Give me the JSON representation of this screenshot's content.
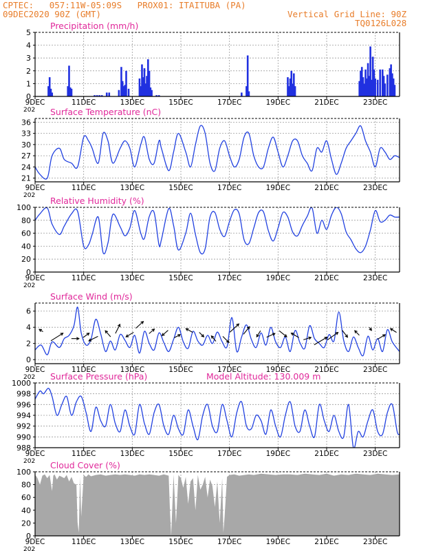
{
  "header": {
    "line1_left": "CPTEC:   057:11W-05:09S   PROX01: ITAITUBA (PA)",
    "line2_left": "09DEC2020 90Z (GMT)",
    "line2_right": "Vertical Grid Line: 90Z",
    "line3_right": "TQ0126L028",
    "color": "#e87d2a"
  },
  "style": {
    "title_color": "#e0289a",
    "line_color": "#2040e0",
    "bar_color": "#2030e0",
    "cloud_color": "#a8a8a8"
  },
  "x_axis": {
    "labels": [
      "9DEC",
      "11DEC",
      "13DEC",
      "15DEC",
      "17DEC",
      "19DEC",
      "21DEC",
      "23DEC"
    ],
    "label_day": [
      9,
      11,
      13,
      15,
      17,
      19,
      21,
      23
    ],
    "year_stub": "202",
    "x_start_day": 9,
    "x_end_day": 24
  },
  "chart_data": [
    {
      "id": "precip",
      "type": "bar",
      "title": "Precipitation (mm/h)",
      "ylim": [
        0,
        5
      ],
      "yticks": [
        "0",
        "1",
        "2",
        "3",
        "4",
        "5"
      ],
      "grid": true,
      "x_day": [
        9.55,
        9.6,
        9.65,
        9.7,
        10.35,
        10.4,
        10.45,
        10.5,
        11.45,
        11.55,
        11.65,
        11.75,
        11.95,
        12.05,
        12.45,
        12.55,
        12.6,
        12.65,
        12.7,
        12.75,
        12.85,
        13.3,
        13.35,
        13.4,
        13.45,
        13.5,
        13.55,
        13.6,
        13.65,
        13.7,
        13.75,
        13.8,
        14.0,
        14.1,
        17.5,
        17.7,
        17.75,
        17.8,
        19.4,
        19.45,
        19.5,
        19.55,
        19.6,
        19.65,
        19.7,
        22.35,
        22.4,
        22.45,
        22.5,
        22.55,
        22.6,
        22.65,
        22.7,
        22.75,
        22.8,
        22.85,
        22.9,
        22.95,
        23.0,
        23.1,
        23.2,
        23.3,
        23.35,
        23.4,
        23.5,
        23.6,
        23.65,
        23.7,
        23.75,
        23.8
      ],
      "values": [
        0.8,
        1.5,
        0.6,
        0.3,
        0.8,
        2.4,
        0.7,
        0.6,
        0.1,
        0.1,
        0.1,
        0.1,
        0.3,
        0.3,
        0.5,
        2.3,
        1.2,
        0.8,
        0.9,
        2.0,
        0.6,
        1.4,
        0.8,
        2.5,
        1.5,
        2.2,
        1.0,
        1.6,
        2.9,
        2.0,
        0.7,
        0.5,
        0.1,
        0.1,
        0.3,
        0.8,
        3.2,
        0.4,
        1.5,
        0.8,
        1.4,
        2.0,
        1.0,
        1.8,
        0.8,
        1.2,
        2.0,
        2.3,
        1.5,
        1.0,
        2.1,
        1.4,
        2.6,
        1.6,
        3.9,
        1.3,
        3.1,
        2.1,
        1.4,
        1.3,
        2.1,
        2.1,
        1.6,
        1.0,
        1.7,
        2.2,
        2.5,
        1.8,
        1.4,
        0.9
      ]
    },
    {
      "id": "temperature",
      "type": "line",
      "title": "Surface Temperature (nC)",
      "ylim": [
        20,
        37
      ],
      "yticks": [
        "21",
        "24",
        "27",
        "30",
        "33",
        "36"
      ],
      "ytick_values": [
        21,
        24,
        27,
        30,
        33,
        36
      ],
      "grid": true,
      "x_day": [
        9,
        9.2,
        9.5,
        9.7,
        10.0,
        10.2,
        10.5,
        10.75,
        11.0,
        11.2,
        11.35,
        11.6,
        11.8,
        12.0,
        12.2,
        12.5,
        12.7,
        12.9,
        13.1,
        13.35,
        13.5,
        13.7,
        13.9,
        14.1,
        14.2,
        14.5,
        14.7,
        14.9,
        15.2,
        15.4,
        15.6,
        15.8,
        16.0,
        16.2,
        16.4,
        16.6,
        16.8,
        17.0,
        17.2,
        17.4,
        17.6,
        17.8,
        18.0,
        18.2,
        18.4,
        18.6,
        18.8,
        19.0,
        19.2,
        19.4,
        19.6,
        19.8,
        20.0,
        20.2,
        20.4,
        20.6,
        20.8,
        21.0,
        21.2,
        21.4,
        21.6,
        21.8,
        22.0,
        22.2,
        22.4,
        22.6,
        22.8,
        23.0,
        23.2,
        23.4,
        23.6,
        23.8,
        24.0
      ],
      "values": [
        24,
        22,
        21,
        27,
        29,
        26,
        25,
        24,
        32,
        31,
        29,
        25,
        33,
        31,
        25,
        29,
        31,
        29,
        24,
        30,
        32,
        26,
        25,
        31,
        29,
        23,
        28,
        33,
        28,
        24,
        30,
        35,
        33,
        25,
        23,
        29,
        31,
        27,
        24,
        26,
        32,
        33,
        27,
        24,
        24,
        29,
        32,
        28,
        24,
        27,
        31,
        31,
        27,
        25,
        23,
        29,
        28,
        31,
        26,
        22,
        25,
        29,
        31,
        33,
        35,
        31,
        28,
        24,
        29,
        28,
        26,
        27,
        26.5
      ]
    },
    {
      "id": "humidity",
      "type": "line",
      "title": "Relative Humidity (%)",
      "ylim": [
        0,
        100
      ],
      "yticks": [
        "0",
        "20",
        "40",
        "60",
        "80",
        "100"
      ],
      "ytick_values": [
        0,
        20,
        40,
        60,
        80,
        100
      ],
      "grid": true,
      "x_day": [
        9,
        9.2,
        9.5,
        9.7,
        10.0,
        10.2,
        10.5,
        10.75,
        11.0,
        11.2,
        11.35,
        11.6,
        11.8,
        12.0,
        12.2,
        12.5,
        12.7,
        12.9,
        13.1,
        13.35,
        13.5,
        13.7,
        13.9,
        14.1,
        14.2,
        14.5,
        14.7,
        14.9,
        15.2,
        15.4,
        15.6,
        15.8,
        16.0,
        16.2,
        16.4,
        16.6,
        16.8,
        17.0,
        17.2,
        17.4,
        17.6,
        17.8,
        18.0,
        18.2,
        18.4,
        18.6,
        18.8,
        19.0,
        19.2,
        19.4,
        19.6,
        19.8,
        20.0,
        20.2,
        20.4,
        20.6,
        20.8,
        21.0,
        21.2,
        21.4,
        21.6,
        21.8,
        22.0,
        22.2,
        22.4,
        22.6,
        22.8,
        23.0,
        23.2,
        23.4,
        23.6,
        23.8,
        24.0
      ],
      "values": [
        80,
        90,
        99,
        74,
        58,
        71,
        90,
        94,
        40,
        42,
        58,
        85,
        30,
        45,
        89,
        70,
        56,
        68,
        95,
        60,
        52,
        86,
        92,
        42,
        50,
        98,
        72,
        34,
        60,
        91,
        58,
        30,
        36,
        85,
        92,
        66,
        55,
        78,
        96,
        90,
        50,
        44,
        68,
        92,
        93,
        64,
        48,
        68,
        92,
        85,
        62,
        56,
        72,
        86,
        99,
        60,
        80,
        66,
        88,
        100,
        90,
        62,
        50,
        36,
        30,
        40,
        65,
        95,
        78,
        80,
        88,
        85,
        85
      ]
    },
    {
      "id": "wind",
      "type": "line",
      "title": "Surface Wind (m/s)",
      "ylim": [
        -0.5,
        7
      ],
      "yticks": [
        "0",
        "2",
        "4",
        "6"
      ],
      "ytick_values": [
        0,
        2,
        4,
        6
      ],
      "grid": true,
      "x_day": [
        9,
        9.25,
        9.5,
        9.7,
        10.0,
        10.2,
        10.4,
        10.6,
        10.75,
        10.9,
        11.1,
        11.3,
        11.5,
        11.7,
        11.9,
        12.1,
        12.3,
        12.5,
        12.7,
        12.9,
        13.1,
        13.3,
        13.5,
        13.7,
        13.9,
        14.1,
        14.3,
        14.5,
        14.7,
        14.9,
        15.1,
        15.3,
        15.5,
        15.7,
        15.9,
        16.1,
        16.3,
        16.5,
        16.7,
        16.9,
        17.1,
        17.3,
        17.5,
        17.7,
        17.9,
        18.1,
        18.3,
        18.5,
        18.7,
        18.9,
        19.1,
        19.3,
        19.5,
        19.7,
        19.9,
        20.1,
        20.3,
        20.5,
        20.7,
        20.9,
        21.1,
        21.3,
        21.5,
        21.7,
        21.9,
        22.1,
        22.3,
        22.5,
        22.7,
        22.9,
        23.1,
        23.3,
        23.5,
        23.7,
        24.0
      ],
      "values": [
        1.2,
        1.8,
        0.6,
        2.2,
        1.5,
        2.6,
        3.0,
        4.2,
        6.5,
        3.3,
        1.8,
        2.5,
        5.0,
        3.2,
        1.0,
        2.3,
        1.2,
        3.1,
        2.4,
        1.5,
        3.0,
        0.8,
        3.5,
        2.0,
        1.2,
        3.3,
        2.1,
        1.0,
        2.5,
        4.0,
        2.2,
        1.4,
        3.5,
        2.3,
        1.8,
        3.0,
        2.0,
        3.4,
        2.2,
        1.6,
        5.2,
        1.0,
        2.8,
        4.3,
        2.5,
        1.5,
        3.3,
        1.8,
        4.0,
        2.2,
        1.5,
        2.8,
        1.0,
        3.6,
        2.1,
        1.4,
        4.2,
        2.6,
        2.0,
        1.5,
        3.1,
        2.3,
        5.9,
        2.4,
        1.0,
        2.8,
        1.5,
        0.5,
        2.9,
        1.2,
        2.6,
        1.0,
        3.7,
        2.2,
        1.0
      ],
      "vectors": {
        "x_day": [
          9.25,
          9.9,
          10.65,
          11.1,
          11.4,
          12.0,
          12.4,
          12.9,
          13.3,
          13.8,
          14.35,
          14.85,
          15.35,
          15.85,
          16.35,
          16.85,
          17.2,
          17.7,
          18.2,
          18.7,
          19.2,
          19.7,
          20.2,
          20.75,
          21.25,
          21.75,
          22.25,
          22.8,
          23.25,
          23.75
        ],
        "y": [
          3.6,
          2.8,
          2.6,
          3.0,
          2.6,
          3.2,
          3.8,
          3.1,
          4.3,
          3.5,
          3.3,
          2.9,
          3.6,
          3.1,
          2.6,
          2.5,
          3.9,
          3.6,
          3.2,
          3.0,
          3.2,
          3.0,
          2.6,
          2.3,
          2.9,
          3.2,
          3.3,
          3.8,
          2.8,
          3.6
        ],
        "u": [
          -0.5,
          1.6,
          1.0,
          0.8,
          -1.2,
          -0.7,
          0.6,
          -1.0,
          1.0,
          0.7,
          -0.8,
          0.8,
          -0.9,
          0.6,
          -0.6,
          0.8,
          1.2,
          0.8,
          -0.5,
          1.1,
          1.0,
          -1.0,
          1.0,
          1.7,
          1.4,
          0.7,
          -0.6,
          0.3,
          1.0,
          -0.8
        ],
        "v": [
          0.3,
          1.0,
          0.0,
          0.6,
          -0.6,
          0.8,
          1.2,
          -0.6,
          0.9,
          0.6,
          -0.7,
          0.4,
          0.5,
          -0.6,
          0.7,
          -0.8,
          1.1,
          1.0,
          -0.8,
          0.5,
          -0.8,
          0.6,
          0.3,
          1.0,
          1.0,
          -0.9,
          0.6,
          -0.4,
          0.6,
          0.5
        ]
      }
    },
    {
      "id": "pressure",
      "type": "line",
      "title": "Surface Pressure (hPa)",
      "annotation": "Model Altitude: 130.009 m",
      "ylim": [
        988,
        1000
      ],
      "yticks": [
        "988",
        "990",
        "992",
        "994",
        "996",
        "998",
        "1000"
      ],
      "ytick_values": [
        988,
        990,
        992,
        994,
        996,
        998,
        1000
      ],
      "grid": true,
      "x_day": [
        9,
        9.2,
        9.35,
        9.55,
        9.7,
        9.9,
        10.1,
        10.3,
        10.5,
        10.7,
        10.9,
        11.1,
        11.3,
        11.5,
        11.7,
        11.9,
        12.1,
        12.3,
        12.5,
        12.7,
        12.9,
        13.1,
        13.3,
        13.5,
        13.7,
        13.9,
        14.1,
        14.3,
        14.5,
        14.7,
        14.9,
        15.1,
        15.3,
        15.5,
        15.7,
        15.9,
        16.1,
        16.3,
        16.5,
        16.7,
        16.9,
        17.1,
        17.3,
        17.5,
        17.7,
        17.9,
        18.1,
        18.3,
        18.5,
        18.7,
        18.9,
        19.1,
        19.3,
        19.5,
        19.7,
        19.9,
        20.1,
        20.3,
        20.5,
        20.7,
        20.9,
        21.1,
        21.3,
        21.5,
        21.7,
        21.9,
        22.1,
        22.3,
        22.5,
        22.7,
        22.9,
        23.1,
        23.3,
        23.5,
        23.7,
        23.9,
        24.0
      ],
      "values": [
        997,
        998.5,
        998.0,
        999.0,
        997.5,
        994.0,
        996.0,
        997.5,
        994.0,
        996.5,
        997.5,
        994.5,
        991.0,
        995.5,
        993.0,
        992.0,
        996.0,
        992.5,
        991.0,
        995.0,
        992.0,
        990.5,
        996.0,
        992.5,
        990.5,
        994.5,
        996.0,
        992.0,
        990.5,
        994.0,
        991.5,
        990.5,
        995.0,
        992.0,
        989.5,
        994.0,
        996.0,
        992.0,
        991.0,
        996.0,
        993.0,
        990.0,
        994.5,
        996.5,
        992.0,
        991.5,
        994.0,
        993.0,
        990.5,
        995.0,
        992.0,
        990.0,
        994.0,
        996.5,
        992.0,
        991.0,
        995.0,
        992.0,
        990.0,
        996.0,
        993.0,
        991.0,
        994.0,
        991.0,
        990.0,
        996.0,
        988.0,
        991.0,
        990.0,
        993.0,
        995.0,
        991.0,
        990.5,
        994.5,
        996.0,
        991.0,
        990.5
      ]
    },
    {
      "id": "cloud",
      "type": "area",
      "title": "Cloud Cover (%)",
      "ylim": [
        0,
        100
      ],
      "yticks": [
        "0",
        "20",
        "40",
        "60",
        "80",
        "100"
      ],
      "ytick_values": [
        0,
        20,
        40,
        60,
        80,
        100
      ],
      "grid": true,
      "x_day": [
        9,
        9.05,
        9.1,
        9.2,
        9.3,
        9.4,
        9.5,
        9.6,
        9.7,
        9.75,
        9.8,
        9.9,
        10.0,
        10.1,
        10.2,
        10.3,
        10.4,
        10.5,
        10.6,
        10.7,
        10.75,
        10.8,
        10.85,
        10.9,
        11.0,
        11.1,
        11.2,
        11.3,
        11.5,
        11.7,
        11.9,
        12.1,
        12.3,
        12.5,
        12.7,
        12.9,
        13.1,
        13.3,
        13.5,
        13.7,
        13.9,
        14.1,
        14.3,
        14.5,
        14.55,
        14.6,
        14.7,
        14.8,
        14.9,
        15.0,
        15.1,
        15.2,
        15.3,
        15.4,
        15.5,
        15.6,
        15.7,
        15.8,
        15.9,
        16.0,
        16.1,
        16.2,
        16.3,
        16.4,
        16.5,
        16.6,
        16.7,
        16.75,
        16.8,
        16.9,
        17.0,
        17.2,
        17.4,
        17.6,
        17.8,
        18.0,
        18.3,
        18.6,
        18.9,
        19.2,
        19.5,
        19.8,
        20.1,
        20.4,
        20.7,
        21.0,
        21.3,
        21.6,
        21.9,
        22.2,
        22.5,
        22.8,
        23.1,
        23.4,
        23.7,
        24.0
      ],
      "values": [
        95,
        93,
        90,
        80,
        94,
        96,
        90,
        95,
        70,
        94,
        96,
        88,
        94,
        92,
        90,
        95,
        85,
        92,
        82,
        80,
        20,
        5,
        92,
        30,
        95,
        92,
        96,
        93,
        95,
        96,
        94,
        95,
        96,
        95,
        96,
        95,
        94,
        96,
        95,
        96,
        95,
        94,
        96,
        94,
        40,
        0,
        96,
        20,
        95,
        90,
        75,
        92,
        50,
        85,
        90,
        40,
        95,
        72,
        80,
        92,
        60,
        88,
        78,
        45,
        85,
        20,
        90,
        5,
        30,
        92,
        95,
        96,
        94,
        95,
        96,
        95,
        97,
        96,
        95,
        96,
        96,
        95,
        97,
        96,
        95,
        97,
        94,
        96,
        95,
        97,
        96,
        95,
        97,
        96,
        95,
        96
      ]
    }
  ]
}
